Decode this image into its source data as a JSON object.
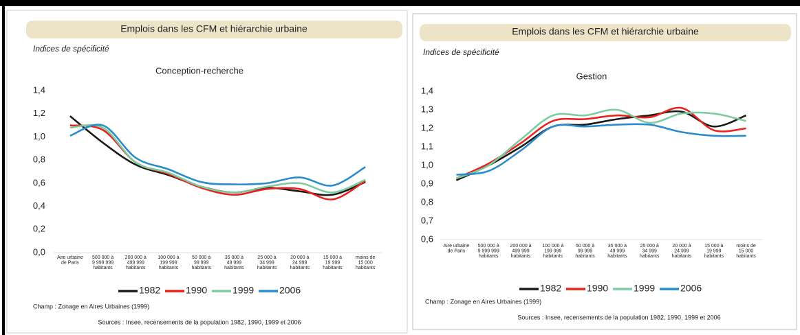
{
  "chart_data": [
    {
      "type": "line",
      "title": "Emplois dans les CFM et hiérarchie urbaine",
      "note": "Indices de spécificité",
      "subtitle": "Conception-recherche",
      "categories": [
        [
          "Aire urbaine",
          "de Paris"
        ],
        [
          "500 000 à",
          "9 999 999",
          "habitants"
        ],
        [
          "200 000 à",
          "499 999",
          "habitants"
        ],
        [
          "100 000 à",
          "199 999",
          "habitants"
        ],
        [
          "50 000 à",
          "99 999",
          "habitants"
        ],
        [
          "35 000 à",
          "49 999",
          "habitants"
        ],
        [
          "25 000 à",
          "34 999",
          "habitants"
        ],
        [
          "20 000 à",
          "24 999",
          "habitants"
        ],
        [
          "15 000 à",
          "19 999",
          "habitants"
        ],
        [
          "moins de",
          "15 000",
          "habitants"
        ]
      ],
      "series": [
        {
          "name": "1982",
          "color": "#1a1a1a",
          "values": [
            1.18,
            0.95,
            0.76,
            0.67,
            0.57,
            0.52,
            0.56,
            0.53,
            0.5,
            0.61
          ]
        },
        {
          "name": "1990",
          "color": "#e8241f",
          "values": [
            1.1,
            1.06,
            0.78,
            0.68,
            0.56,
            0.5,
            0.55,
            0.55,
            0.46,
            0.62
          ]
        },
        {
          "name": "1999",
          "color": "#7ecba1",
          "values": [
            1.08,
            1.08,
            0.78,
            0.69,
            0.57,
            0.52,
            0.57,
            0.6,
            0.52,
            0.63
          ]
        },
        {
          "name": "2006",
          "color": "#2b8ccc",
          "values": [
            1.01,
            1.1,
            0.82,
            0.72,
            0.61,
            0.59,
            0.6,
            0.65,
            0.58,
            0.74
          ]
        }
      ],
      "ylim": [
        0,
        1.4
      ],
      "yticks": [
        {
          "value": 0,
          "label": "0,0"
        },
        {
          "value": 0.2,
          "label": "0,2"
        },
        {
          "value": 0.4,
          "label": "0,4"
        },
        {
          "value": 0.6,
          "label": "0,6"
        },
        {
          "value": 0.8,
          "label": "0,8"
        },
        {
          "value": 1.0,
          "label": "1,0"
        },
        {
          "value": 1.2,
          "label": "1,2"
        },
        {
          "value": 1.4,
          "label": "1,4"
        }
      ],
      "champ": "Champ : Zonage en Aires Urbaines (1999)",
      "source": "Sources : Insee, recensements de la population 1982, 1990, 1999 et 2006"
    },
    {
      "type": "line",
      "title": "Emplois dans les CFM et hiérarchie urbaine",
      "note": "Indices de spécificité",
      "subtitle": "Gestion",
      "categories": [
        [
          "Aire urbaine",
          "de Paris"
        ],
        [
          "500 000 à",
          "9 999 999",
          "habitants"
        ],
        [
          "200 000 à",
          "499 999",
          "habitants"
        ],
        [
          "100 000 à",
          "199 999",
          "habitants"
        ],
        [
          "50 000 à",
          "99 999",
          "habitants"
        ],
        [
          "35 000 à",
          "49 999",
          "habitants"
        ],
        [
          "25 000 à",
          "34 999",
          "habitants"
        ],
        [
          "20 000 à",
          "24 999",
          "habitants"
        ],
        [
          "15 000 à",
          "19 999",
          "habitants"
        ],
        [
          "moins de",
          "15 000",
          "habitants"
        ]
      ],
      "series": [
        {
          "name": "1982",
          "color": "#1a1a1a",
          "values": [
            0.92,
            1.0,
            1.1,
            1.21,
            1.22,
            1.25,
            1.27,
            1.29,
            1.21,
            1.27
          ]
        },
        {
          "name": "1990",
          "color": "#e8241f",
          "values": [
            0.93,
            1.01,
            1.12,
            1.24,
            1.25,
            1.27,
            1.26,
            1.31,
            1.19,
            1.2
          ]
        },
        {
          "name": "1999",
          "color": "#7ecba1",
          "values": [
            0.93,
            1.0,
            1.14,
            1.27,
            1.27,
            1.3,
            1.23,
            1.28,
            1.28,
            1.24
          ]
        },
        {
          "name": "2006",
          "color": "#2b8ccc",
          "values": [
            0.95,
            0.97,
            1.08,
            1.21,
            1.21,
            1.22,
            1.22,
            1.18,
            1.16,
            1.16
          ]
        }
      ],
      "ylim": [
        0.6,
        1.4
      ],
      "yticks": [
        {
          "value": 0.6,
          "label": "0,6"
        },
        {
          "value": 0.7,
          "label": "0,7"
        },
        {
          "value": 0.8,
          "label": "0,8"
        },
        {
          "value": 0.9,
          "label": "0,9"
        },
        {
          "value": 1.0,
          "label": "1,0"
        },
        {
          "value": 1.1,
          "label": "1,1"
        },
        {
          "value": 1.2,
          "label": "1,2"
        },
        {
          "value": 1.3,
          "label": "1,3"
        },
        {
          "value": 1.4,
          "label": "1,4"
        }
      ],
      "champ": "Champ : Zonage en Aires Urbaines (1999)",
      "source": "Sources : Insee, recensements de la population 1982, 1990, 1999 et 2006"
    }
  ]
}
